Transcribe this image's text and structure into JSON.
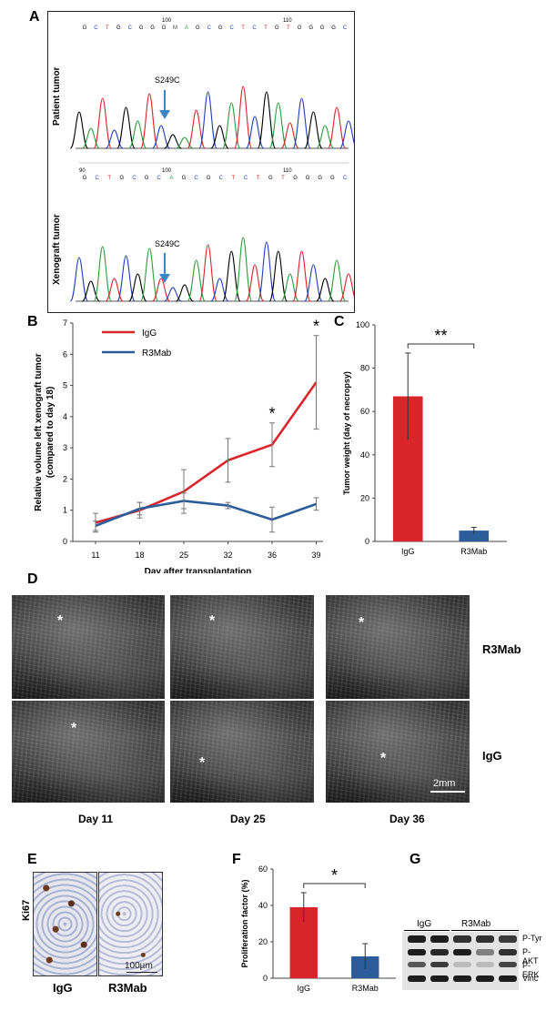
{
  "panels": {
    "A": "A",
    "B": "B",
    "C": "C",
    "D": "D",
    "E": "E",
    "F": "F",
    "G": "G"
  },
  "panel_a": {
    "top_label": "Patient tumor",
    "bottom_label": "Xenograft tumor",
    "mutation_label": "S249C",
    "sequence_top": [
      "G",
      "C",
      "T",
      "G",
      "C",
      "G",
      "G",
      "G",
      "M",
      "A",
      "G",
      "C",
      "G",
      "C",
      "T",
      "C",
      "T",
      "G",
      "T",
      "G",
      "G",
      "G",
      "G",
      "C"
    ],
    "sequence_bottom": [
      "G",
      "C",
      "T",
      "G",
      "C",
      "G",
      "C",
      "A",
      "G",
      "C",
      "G",
      "C",
      "T",
      "C",
      "T",
      "G",
      "T",
      "G",
      "G",
      "G",
      "G",
      "C"
    ],
    "pos_100": "100",
    "pos_110": "110",
    "pos_90": "90"
  },
  "chart_data": [
    {
      "id": "B",
      "type": "line",
      "ylabel": "Relative volume left xenograft tumor (compared to day 18)",
      "ylabel_line1": "Relative volume left xenograft tumor",
      "ylabel_line2": "(compared to day 18)",
      "xlabel": "Day after transplantation",
      "categories": [
        "11",
        "18",
        "25",
        "32",
        "36",
        "39"
      ],
      "ylim": [
        0,
        7
      ],
      "yticks": [
        0,
        1,
        2,
        3,
        4,
        5,
        6,
        7
      ],
      "series": [
        {
          "name": "IgG",
          "color": "#d9242a",
          "values": [
            0.6,
            1.0,
            1.6,
            2.6,
            3.1,
            5.1
          ],
          "err": [
            0.3,
            0.25,
            0.7,
            0.7,
            0.7,
            1.5
          ]
        },
        {
          "name": "R3Mab",
          "color": "#2a5d9a",
          "values": [
            0.5,
            1.05,
            1.3,
            1.15,
            0.7,
            1.2
          ],
          "err": [
            0.15,
            0.2,
            0.25,
            0.1,
            0.4,
            0.2
          ]
        }
      ],
      "significance": [
        {
          "x": "36",
          "mark": "*"
        },
        {
          "x": "39",
          "mark": "*"
        }
      ]
    },
    {
      "id": "C",
      "type": "bar",
      "ylabel": "Tumor weight (day of necropsy)",
      "categories": [
        "IgG",
        "R3Mab"
      ],
      "values": [
        67,
        5
      ],
      "err": [
        20,
        1.5
      ],
      "colors": [
        "#d9242a",
        "#2a5d9a"
      ],
      "ylim": [
        0,
        100
      ],
      "yticks": [
        0,
        20,
        40,
        60,
        80,
        100
      ],
      "significance": "**"
    },
    {
      "id": "F",
      "type": "bar",
      "ylabel": "Proliferation factor (%)",
      "categories": [
        "IgG",
        "R3Mab"
      ],
      "values": [
        39,
        12
      ],
      "err": [
        8,
        7
      ],
      "colors": [
        "#d9242a",
        "#2a5d9a"
      ],
      "ylim": [
        0,
        60
      ],
      "yticks": [
        0,
        20,
        40,
        60
      ],
      "significance": "*"
    }
  ],
  "panel_d": {
    "row_labels": [
      "R3Mab",
      "IgG"
    ],
    "day_labels": [
      "Day 11",
      "Day 25",
      "Day 36"
    ],
    "star": "*",
    "scale": "2mm"
  },
  "panel_e": {
    "side_label": "Ki67",
    "labels": [
      "IgG",
      "R3Mab"
    ],
    "scale": "100µm"
  },
  "panel_g": {
    "group_labels": [
      "IgG",
      "R3Mab"
    ],
    "band_labels": [
      "P-Tyr",
      "P-AKT",
      "P-ERK",
      "Vinc"
    ]
  }
}
